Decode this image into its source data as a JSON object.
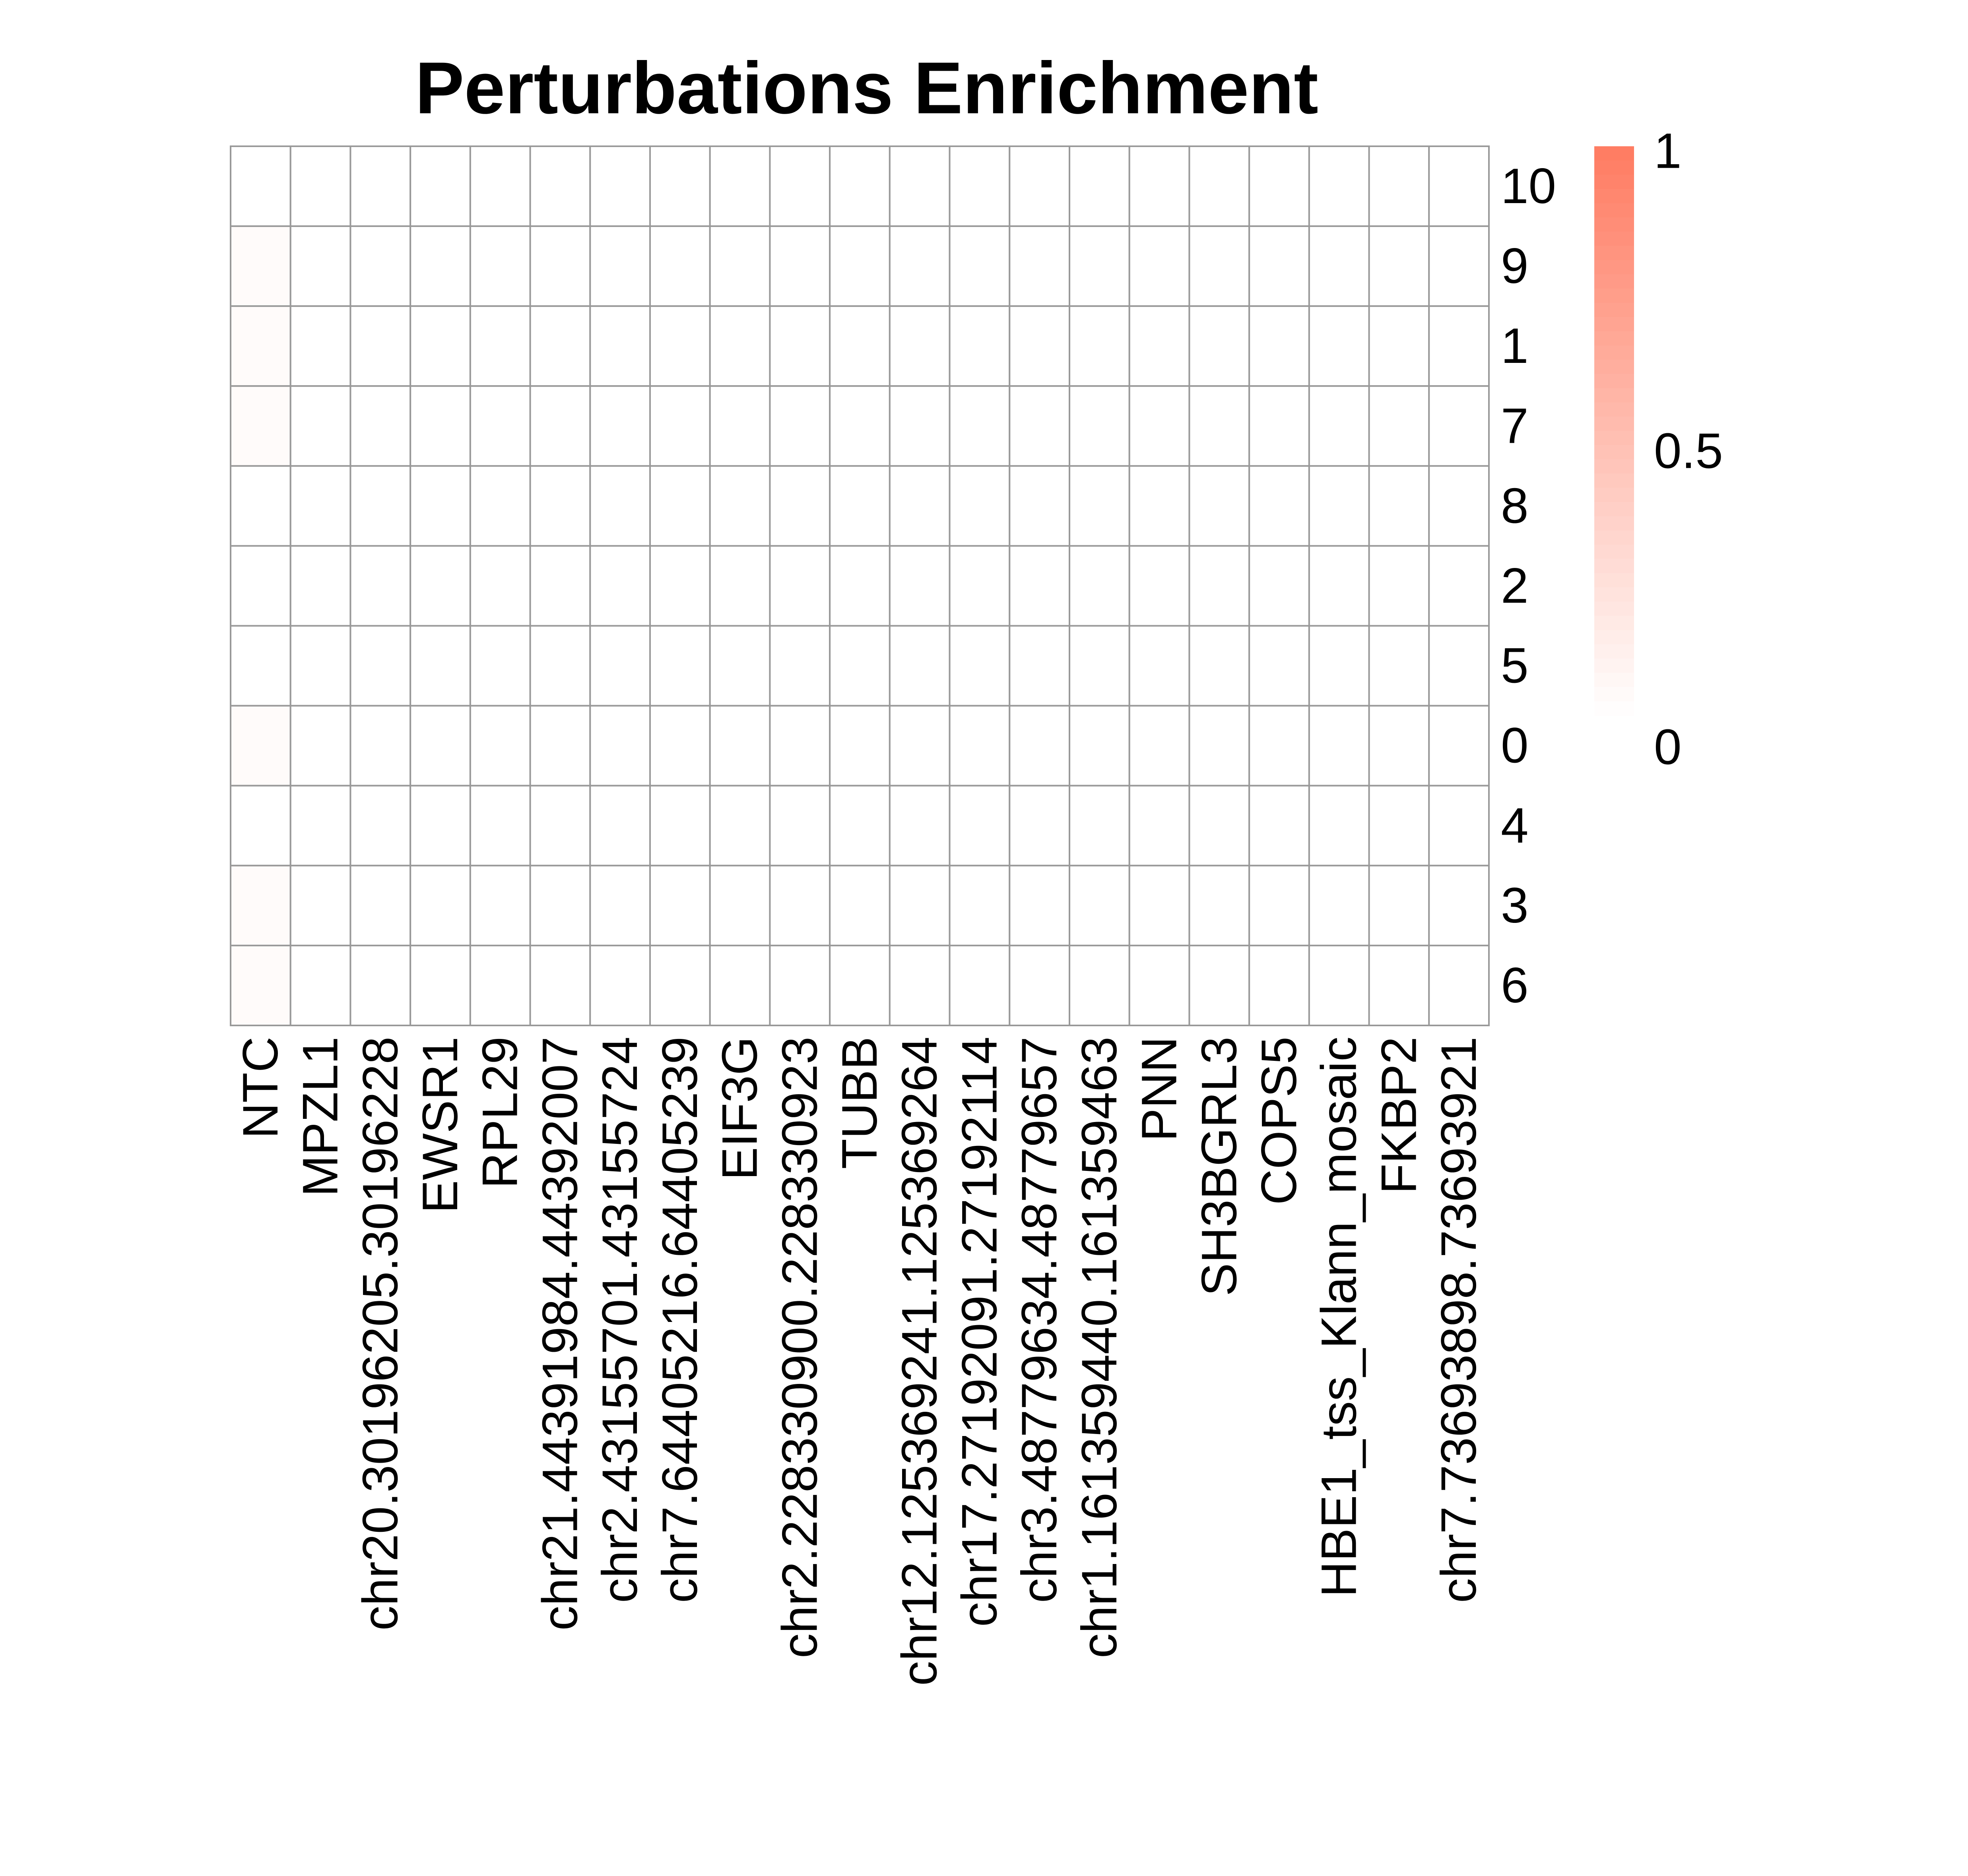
{
  "chart_data": {
    "type": "heatmap",
    "title": "Perturbations Enrichment",
    "columns": [
      "NTC",
      "MPZL1",
      "chr20.30196205.30196228",
      "EWSR1",
      "RPL29",
      "chr21.44391984.44392007",
      "chr2.43155701.43155724",
      "chr7.64405216.64405239",
      "EIF3G",
      "chr2.228330900.228330923",
      "TUBB",
      "chr12.125369241.125369264",
      "chr17.27192091.27192114",
      "chr3.48779634.48779657",
      "chr1.161359440.161359463",
      "PNN",
      "SH3BGRL3",
      "COPS5",
      "HBE1_tss_Klann_mosaic",
      "FKBP2",
      "chr7.73693898.73693921"
    ],
    "rows": [
      "10",
      "9",
      "1",
      "7",
      "8",
      "2",
      "5",
      "0",
      "4",
      "3",
      "6"
    ],
    "values": [
      [
        0.0,
        0,
        0,
        0,
        0,
        0,
        0,
        0,
        0,
        0,
        0,
        0,
        0,
        0,
        0,
        0,
        0,
        0,
        0,
        0,
        0
      ],
      [
        0.03,
        0,
        0,
        0,
        0,
        0,
        0,
        0,
        0,
        0,
        0,
        0,
        0,
        0,
        0,
        0,
        0,
        0,
        0,
        0,
        0
      ],
      [
        0.03,
        0,
        0,
        0,
        0,
        0,
        0,
        0,
        0,
        0,
        0,
        0,
        0,
        0,
        0,
        0,
        0,
        0,
        0,
        0,
        0
      ],
      [
        0.03,
        0,
        0,
        0,
        0,
        0,
        0,
        0,
        0,
        0,
        0,
        0,
        0,
        0,
        0,
        0,
        0,
        0,
        0,
        0,
        0
      ],
      [
        0.0,
        0,
        0,
        0,
        0,
        0,
        0,
        0,
        0,
        0,
        0,
        0,
        0,
        0,
        0,
        0,
        0,
        0,
        0,
        0,
        0
      ],
      [
        0.0,
        0,
        0,
        0,
        0,
        0,
        0,
        0,
        0,
        0,
        0,
        0,
        0,
        0,
        0,
        0,
        0,
        0,
        0,
        0,
        0
      ],
      [
        0.0,
        0,
        0,
        0,
        0,
        0,
        0,
        0,
        0,
        0,
        0,
        0,
        0,
        0,
        0,
        0,
        0,
        0,
        0,
        0,
        0
      ],
      [
        0.03,
        0,
        0,
        0,
        0,
        0,
        0,
        0,
        0,
        0,
        0,
        0,
        0,
        0,
        0,
        0,
        0,
        0,
        0,
        0,
        0
      ],
      [
        0.0,
        0,
        0,
        0,
        0,
        0,
        0,
        0,
        0,
        0,
        0,
        0,
        0,
        0,
        0,
        0,
        0,
        0,
        0,
        0,
        0
      ],
      [
        0.03,
        0,
        0,
        0,
        0,
        0,
        0,
        0,
        0,
        0,
        0,
        0,
        0,
        0,
        0,
        0,
        0,
        0,
        0,
        0,
        0
      ],
      [
        0.03,
        0,
        0,
        0,
        0,
        0,
        0,
        0,
        0,
        0,
        0,
        0,
        0,
        0,
        0,
        0,
        0,
        0,
        0,
        0,
        0
      ]
    ],
    "color_range": [
      0,
      1
    ],
    "color_low": "#ffffff",
    "color_high": "#ff7b61",
    "cell_border_color": "#999999",
    "legend": {
      "position": "right",
      "ticks": [
        {
          "value": 1,
          "label": "1"
        },
        {
          "value": 0.5,
          "label": "0.5"
        },
        {
          "value": 0,
          "label": "0"
        }
      ]
    }
  }
}
